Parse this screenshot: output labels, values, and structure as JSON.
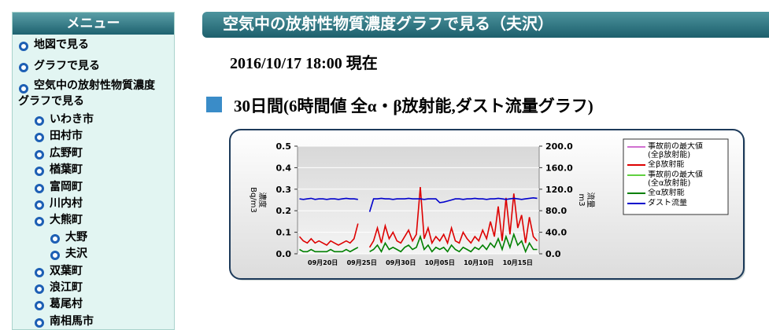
{
  "menu": {
    "title": "メニュー",
    "items": [
      {
        "label": "地図で見る"
      },
      {
        "label": "グラフで見る"
      },
      {
        "label": [
          "空気中の放射性物質濃度",
          "グラフで見る"
        ],
        "children": [
          {
            "label": "いわき市"
          },
          {
            "label": "田村市"
          },
          {
            "label": "広野町"
          },
          {
            "label": "楢葉町"
          },
          {
            "label": "富岡町"
          },
          {
            "label": "川内村"
          },
          {
            "label": "大熊町",
            "children": [
              {
                "label": "大野"
              },
              {
                "label": "夫沢"
              }
            ]
          },
          {
            "label": "双葉町"
          },
          {
            "label": "浪江町"
          },
          {
            "label": "葛尾村"
          },
          {
            "label": "南相馬市"
          }
        ]
      }
    ]
  },
  "header": {
    "title": "空気中の放射性物質濃度グラフで見る（夫沢）",
    "timestamp": "2016/10/17 18:00 現在"
  },
  "section_title": "30日間(6時間値 全α・β放射能,ダスト流量グラフ)",
  "chart_data": {
    "type": "line",
    "grid": true,
    "ylabel": [
      "濃度",
      "Bq/m3"
    ],
    "y2label": [
      "流量",
      "m3"
    ],
    "categories": [
      null,
      null,
      null,
      null,
      null,
      null,
      "09月20日",
      null,
      null,
      null,
      null,
      null,
      null,
      null,
      null,
      null,
      "09月25日",
      null,
      null,
      null,
      null,
      null,
      null,
      null,
      null,
      null,
      "09月30日",
      null,
      null,
      null,
      null,
      null,
      null,
      null,
      null,
      null,
      "10月05日",
      null,
      null,
      null,
      null,
      null,
      null,
      null,
      null,
      null,
      "10月10日",
      null,
      null,
      null,
      null,
      null,
      null,
      null,
      null,
      null,
      "10月15日",
      null,
      null,
      null,
      null,
      null
    ],
    "ylim": [
      0,
      0.5
    ],
    "yticks": [
      {
        "value": 0,
        "label": "0.0"
      },
      0.1,
      0.2,
      0.3,
      0.4,
      0.5
    ],
    "y2lim": [
      0,
      200
    ],
    "y2ticks": [
      {
        "value": 0,
        "label": "0.0"
      },
      {
        "value": 40,
        "label": "40.0"
      },
      {
        "value": 80,
        "label": "80.0"
      },
      {
        "value": 120,
        "label": "120.0"
      },
      {
        "value": 160,
        "label": "160.0"
      },
      {
        "value": 200,
        "label": "200.0"
      }
    ],
    "reference_lines": [
      {
        "name": "事故前の最大値(全β放射能)",
        "color": "#d070d0"
      },
      {
        "name": "事故前の最大値(全α放射能)",
        "color": "#60d040"
      }
    ],
    "series": [
      {
        "name": "全β放射能",
        "color": "#dd0000",
        "values": [
          0.08,
          0.06,
          0.05,
          0.07,
          0.05,
          0.06,
          0.05,
          0.04,
          0.06,
          0.05,
          0.04,
          0.05,
          0.06,
          0.05,
          0.07,
          0.14,
          null,
          null,
          0.03,
          0.06,
          0.12,
          0.05,
          0.13,
          0.07,
          0.1,
          0.06,
          0.05,
          0.08,
          0.11,
          0.06,
          0.09,
          0.31,
          0.07,
          0.12,
          0.05,
          0.08,
          0.06,
          0.09,
          0.05,
          0.12,
          0.06,
          0.05,
          0.1,
          0.07,
          0.05,
          0.08,
          0.06,
          0.11,
          0.07,
          0.15,
          0.08,
          0.22,
          0.06,
          0.26,
          0.09,
          0.28,
          0.12,
          0.18,
          0.05,
          0.17,
          0.08,
          0.06
        ]
      },
      {
        "name": "全α放射能",
        "color": "#008000",
        "values": [
          0.02,
          0.01,
          0.01,
          0.02,
          0.01,
          0.01,
          0.01,
          0.01,
          0.02,
          0.01,
          0.01,
          0.01,
          0.02,
          0.01,
          0.02,
          0.03,
          null,
          null,
          0.01,
          0.02,
          0.04,
          0.01,
          0.05,
          0.02,
          0.03,
          0.02,
          0.01,
          0.03,
          0.04,
          0.02,
          0.03,
          0.08,
          0.02,
          0.04,
          0.01,
          0.03,
          0.02,
          0.03,
          0.01,
          0.04,
          0.02,
          0.01,
          0.03,
          0.02,
          0.01,
          0.03,
          0.02,
          0.04,
          0.02,
          0.05,
          0.03,
          0.07,
          0.02,
          0.08,
          0.03,
          0.09,
          0.04,
          0.06,
          0.01,
          0.05,
          0.02,
          0.02
        ]
      },
      {
        "name": "ダスト流量",
        "color": "#0000cc",
        "axis": "y2",
        "values": [
          102,
          101,
          102,
          103,
          101,
          102,
          102,
          101,
          102,
          102,
          101,
          102,
          103,
          102,
          102,
          101,
          null,
          null,
          78,
          102,
          102,
          103,
          102,
          102,
          101,
          102,
          102,
          102,
          103,
          102,
          102,
          102,
          101,
          102,
          102,
          102,
          95,
          96,
          98,
          100,
          102,
          102,
          101,
          102,
          102,
          103,
          102,
          102,
          101,
          102,
          102,
          103,
          102,
          101,
          102,
          103,
          102,
          101,
          102,
          103,
          104,
          103
        ]
      }
    ]
  }
}
